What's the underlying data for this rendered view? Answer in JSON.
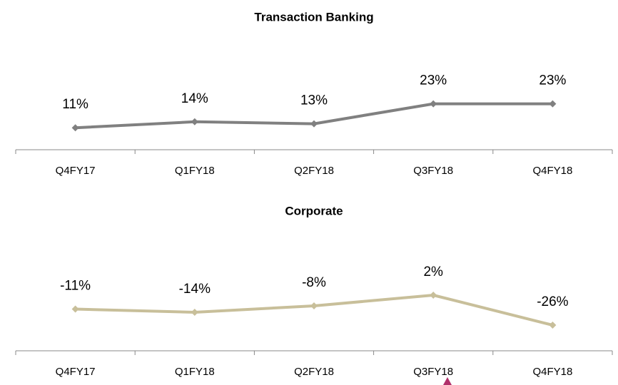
{
  "chart_data": [
    {
      "type": "line",
      "title": "Transaction Banking",
      "categories": [
        "Q4FY17",
        "Q1FY18",
        "Q2FY18",
        "Q3FY18",
        "Q4FY18"
      ],
      "series": [
        {
          "name": null,
          "color": "#808080",
          "values": [
            11,
            14,
            13,
            23,
            23
          ],
          "value_labels": [
            "11%",
            "14%",
            "13%",
            "23%",
            "23%"
          ]
        }
      ],
      "ylim": [
        0,
        50
      ]
    },
    {
      "type": "line",
      "title": "Corporate",
      "categories": [
        "Q4FY17",
        "Q1FY18",
        "Q2FY18",
        "Q3FY18",
        "Q4FY18"
      ],
      "series": [
        {
          "name": null,
          "color": "#c8bf9a",
          "values": [
            -11,
            -14,
            -8,
            2,
            -26
          ],
          "value_labels": [
            "-11%",
            "-14%",
            "-8%",
            "2%",
            "-26%"
          ]
        }
      ],
      "ylim": [
        -50,
        30
      ]
    }
  ]
}
